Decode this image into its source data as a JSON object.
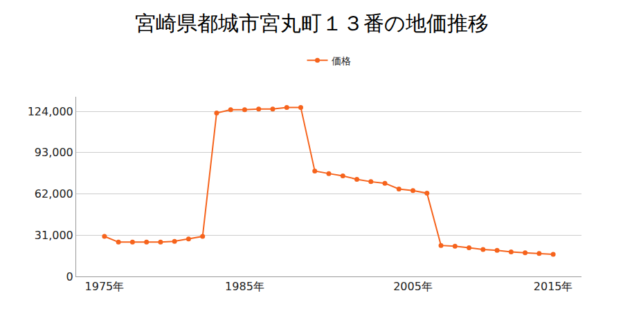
{
  "chart_data": {
    "type": "line",
    "title": "宮崎県都城市宮丸町１３番の地価推移",
    "categories": [
      "1975年",
      null,
      null,
      null,
      null,
      null,
      null,
      null,
      null,
      null,
      "1985年",
      null,
      null,
      null,
      null,
      null,
      null,
      null,
      null,
      null,
      null,
      null,
      "2005年",
      null,
      null,
      null,
      null,
      null,
      null,
      null,
      null,
      null,
      "2015年"
    ],
    "series": [
      {
        "name": "価格",
        "color": "#f6631c",
        "marker": "circle",
        "values": [
          30100,
          25800,
          25800,
          25800,
          25800,
          26400,
          28200,
          30100,
          122800,
          125200,
          125200,
          125800,
          125800,
          127000,
          127000,
          79200,
          77300,
          75500,
          73000,
          71200,
          70000,
          65700,
          64500,
          62600,
          23300,
          22700,
          21500,
          20300,
          19600,
          18400,
          17800,
          17200,
          16600
        ]
      }
    ],
    "ylim": [
      0,
      135000
    ],
    "yticks": [
      0,
      {
        "value": 31000,
        "label": "31,000"
      },
      {
        "value": 62000,
        "label": "62,000"
      },
      {
        "value": 93000,
        "label": "93,000"
      },
      {
        "value": 124000,
        "label": "124,000"
      }
    ],
    "grid": true,
    "legend": "top"
  }
}
